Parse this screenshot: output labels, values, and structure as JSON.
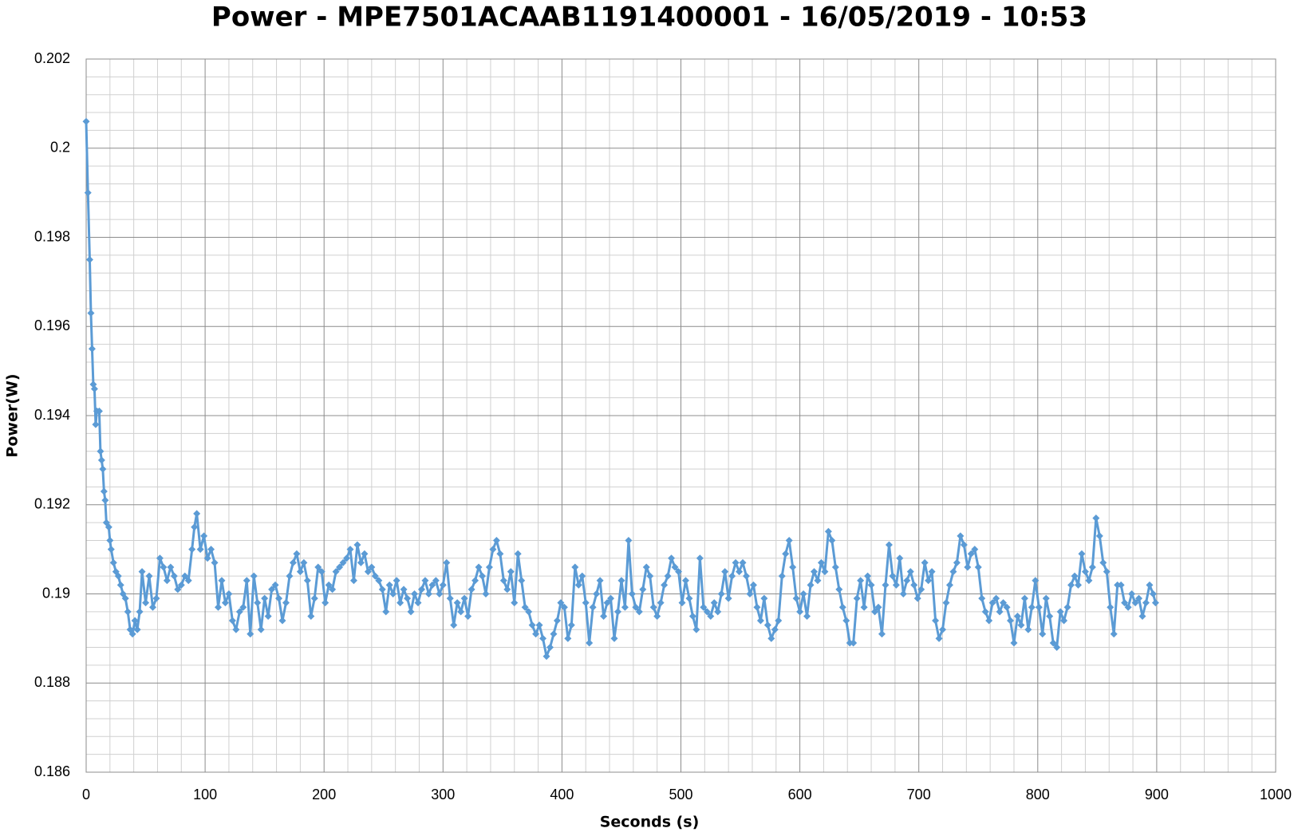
{
  "chart_data": {
    "type": "line",
    "title": "Power - MPE7501ACAAB1191400001 - 16/05/2019 - 10:53",
    "x_label": "Seconds (s)",
    "y_label": "Power(W)",
    "xlim": [
      0,
      1000
    ],
    "xticks": [
      0,
      100,
      200,
      300,
      400,
      500,
      600,
      700,
      800,
      900,
      1000
    ],
    "ylim": [
      0.186,
      0.202
    ],
    "yticks": [
      0.186,
      0.188,
      0.19,
      0.192,
      0.194,
      0.196,
      0.198,
      0.2,
      0.202
    ],
    "grid": true,
    "minor_grid": true,
    "x": [
      0,
      1.5,
      3,
      4,
      5,
      6,
      7,
      8,
      9,
      11,
      12,
      13,
      14,
      15,
      16,
      17,
      19,
      20,
      21,
      23,
      25,
      27,
      29,
      31,
      33,
      35,
      37,
      39,
      41,
      43,
      45,
      47,
      50,
      53,
      56,
      59,
      62,
      65,
      68,
      71,
      74,
      77,
      80,
      83,
      86,
      89,
      91,
      93,
      96,
      99,
      102,
      105,
      108,
      111,
      114,
      117,
      120,
      123,
      126,
      129,
      132,
      135,
      138,
      141,
      144,
      147,
      150,
      153,
      156,
      159,
      162,
      165,
      168,
      171,
      174,
      177,
      180,
      183,
      186,
      189,
      192,
      195,
      198,
      201,
      204,
      207,
      210,
      213,
      216,
      219,
      222,
      225,
      228,
      231,
      234,
      237,
      240,
      243,
      246,
      249,
      252,
      255,
      258,
      261,
      264,
      267,
      270,
      273,
      276,
      279,
      282,
      285,
      288,
      291,
      294,
      297,
      300,
      303,
      306,
      309,
      312,
      315,
      318,
      321,
      324,
      327,
      330,
      333,
      336,
      339,
      342,
      345,
      348,
      351,
      354,
      357,
      360,
      363,
      366,
      369,
      372,
      375,
      378,
      381,
      384,
      387,
      390,
      393,
      396,
      399,
      402,
      405,
      408,
      411,
      414,
      417,
      420,
      423,
      426,
      429,
      432,
      435,
      438,
      441,
      444,
      447,
      450,
      453,
      456,
      459,
      462,
      465,
      468,
      471,
      474,
      477,
      480,
      483,
      486,
      489,
      492,
      495,
      498,
      501,
      504,
      507,
      510,
      513,
      516,
      519,
      522,
      525,
      528,
      531,
      534,
      537,
      540,
      543,
      546,
      549,
      552,
      555,
      558,
      561,
      564,
      567,
      570,
      573,
      576,
      579,
      582,
      585,
      588,
      591,
      594,
      597,
      600,
      603,
      606,
      609,
      612,
      615,
      618,
      621,
      624,
      627,
      630,
      633,
      636,
      639,
      642,
      645,
      648,
      651,
      654,
      657,
      660,
      663,
      666,
      669,
      672,
      675,
      678,
      681,
      684,
      687,
      690,
      693,
      696,
      699,
      702,
      705,
      708,
      711,
      714,
      717,
      720,
      723,
      726,
      729,
      732,
      735,
      738,
      741,
      744,
      747,
      750,
      753,
      756,
      759,
      762,
      765,
      768,
      771,
      774,
      777,
      780,
      783,
      786,
      789,
      792,
      795,
      798,
      801,
      804,
      807,
      810,
      813,
      816,
      819,
      822,
      825,
      828,
      831,
      834,
      837,
      840,
      843,
      846,
      849,
      852,
      855,
      858,
      861,
      864,
      867,
      870,
      873,
      876,
      879,
      882,
      885,
      888,
      891,
      894,
      897,
      899
    ],
    "series": [
      {
        "name": "Power",
        "color": "#5b9bd5",
        "values": [
          0.2006,
          0.199,
          0.1975,
          0.1963,
          0.1955,
          0.1947,
          0.1946,
          0.1938,
          0.1941,
          0.1941,
          0.1932,
          0.193,
          0.1928,
          0.1923,
          0.1921,
          0.1916,
          0.1915,
          0.1912,
          0.191,
          0.1907,
          0.1905,
          0.1904,
          0.1902,
          0.19,
          0.1899,
          0.1896,
          0.1892,
          0.1891,
          0.1894,
          0.1892,
          0.1896,
          0.1905,
          0.1898,
          0.1904,
          0.1897,
          0.1899,
          0.1908,
          0.1906,
          0.1903,
          0.1906,
          0.1904,
          0.1901,
          0.1902,
          0.1904,
          0.1903,
          0.191,
          0.1915,
          0.1918,
          0.191,
          0.1913,
          0.1908,
          0.191,
          0.1907,
          0.1897,
          0.1903,
          0.1898,
          0.19,
          0.1894,
          0.1892,
          0.1896,
          0.1897,
          0.1903,
          0.1891,
          0.1904,
          0.1898,
          0.1892,
          0.1899,
          0.1895,
          0.1901,
          0.1902,
          0.1899,
          0.1894,
          0.1898,
          0.1904,
          0.1907,
          0.1909,
          0.1905,
          0.1907,
          0.1903,
          0.1895,
          0.1899,
          0.1906,
          0.1905,
          0.1898,
          0.1902,
          0.1901,
          0.1905,
          0.1906,
          0.1907,
          0.1908,
          0.191,
          0.1903,
          0.1911,
          0.1907,
          0.1909,
          0.1905,
          0.1906,
          0.1904,
          0.1903,
          0.1901,
          0.1896,
          0.1902,
          0.19,
          0.1903,
          0.1898,
          0.1901,
          0.1899,
          0.1896,
          0.19,
          0.1898,
          0.1901,
          0.1903,
          0.19,
          0.1902,
          0.1903,
          0.19,
          0.1902,
          0.1907,
          0.1899,
          0.1893,
          0.1898,
          0.1896,
          0.1899,
          0.1895,
          0.1901,
          0.1903,
          0.1906,
          0.1904,
          0.19,
          0.1906,
          0.191,
          0.1912,
          0.1909,
          0.1903,
          0.1901,
          0.1905,
          0.1898,
          0.1909,
          0.1903,
          0.1897,
          0.1896,
          0.1893,
          0.1891,
          0.1893,
          0.189,
          0.1886,
          0.1888,
          0.1891,
          0.1894,
          0.1898,
          0.1897,
          0.189,
          0.1893,
          0.1906,
          0.1902,
          0.1904,
          0.1898,
          0.1889,
          0.1897,
          0.19,
          0.1903,
          0.1895,
          0.1898,
          0.1899,
          0.189,
          0.1896,
          0.1903,
          0.1897,
          0.1912,
          0.19,
          0.1897,
          0.1896,
          0.1901,
          0.1906,
          0.1904,
          0.1897,
          0.1895,
          0.1898,
          0.1902,
          0.1904,
          0.1908,
          0.1906,
          0.1905,
          0.1898,
          0.1903,
          0.1899,
          0.1895,
          0.1892,
          0.1908,
          0.1897,
          0.1896,
          0.1895,
          0.1898,
          0.1896,
          0.19,
          0.1905,
          0.1899,
          0.1904,
          0.1907,
          0.1905,
          0.1907,
          0.1904,
          0.19,
          0.1902,
          0.1897,
          0.1894,
          0.1899,
          0.1893,
          0.189,
          0.1892,
          0.1894,
          0.1904,
          0.1909,
          0.1912,
          0.1906,
          0.1899,
          0.1896,
          0.19,
          0.1895,
          0.1902,
          0.1905,
          0.1903,
          0.1907,
          0.1905,
          0.1914,
          0.1912,
          0.1906,
          0.1901,
          0.1897,
          0.1894,
          0.1889,
          0.1889,
          0.1899,
          0.1903,
          0.1897,
          0.1904,
          0.1902,
          0.1896,
          0.1897,
          0.1891,
          0.1902,
          0.1911,
          0.1904,
          0.1902,
          0.1908,
          0.19,
          0.1903,
          0.1905,
          0.1902,
          0.1899,
          0.1901,
          0.1907,
          0.1903,
          0.1905,
          0.1894,
          0.189,
          0.1892,
          0.1898,
          0.1902,
          0.1905,
          0.1907,
          0.1913,
          0.1911,
          0.1906,
          0.1909,
          0.191,
          0.1906,
          0.1899,
          0.1896,
          0.1894,
          0.1898,
          0.1899,
          0.1896,
          0.1898,
          0.1897,
          0.1894,
          0.1889,
          0.1895,
          0.1893,
          0.1899,
          0.1892,
          0.1897,
          0.1903,
          0.1897,
          0.1891,
          0.1899,
          0.1895,
          0.1889,
          0.1888,
          0.1896,
          0.1894,
          0.1897,
          0.1902,
          0.1904,
          0.1902,
          0.1909,
          0.1905,
          0.1903,
          0.1906,
          0.1917,
          0.1913,
          0.1907,
          0.1905,
          0.1897,
          0.1891,
          0.1902,
          0.1902,
          0.1898,
          0.1897,
          0.19,
          0.1898,
          0.1899,
          0.1895,
          0.1898,
          0.1902,
          0.19,
          0.1898
        ]
      }
    ]
  }
}
